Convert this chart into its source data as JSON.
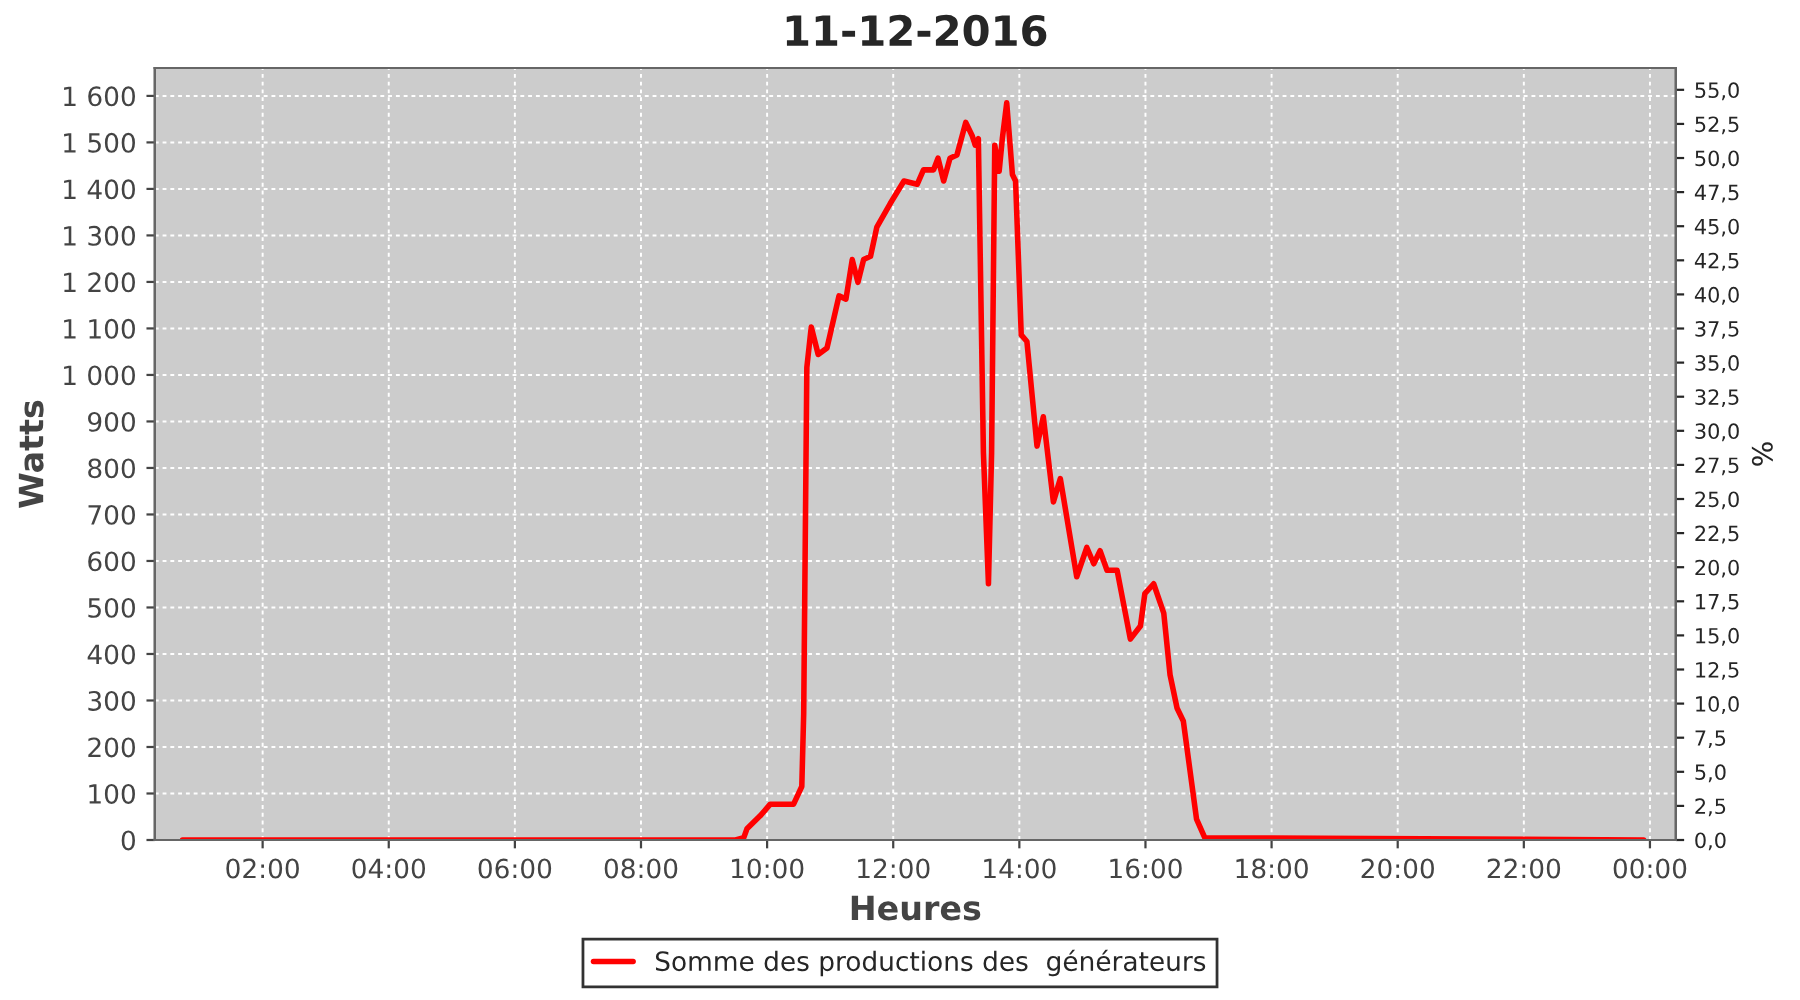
{
  "chart_data": {
    "type": "line",
    "title": "11-12-2016",
    "xlabel": "Heures",
    "ylabel": "Watts",
    "y2label": "%",
    "x": [
      0.73,
      9.5,
      9.63,
      9.68,
      9.89,
      10.05,
      10.42,
      10.55,
      10.58,
      10.63,
      10.7,
      10.81,
      10.95,
      11.14,
      11.25,
      11.35,
      11.44,
      11.53,
      11.64,
      11.74,
      11.95,
      12.17,
      12.38,
      12.48,
      12.64,
      12.71,
      12.8,
      12.9,
      13.01,
      13.15,
      13.25,
      13.3,
      13.35,
      13.43,
      13.51,
      13.56,
      13.61,
      13.68,
      13.73,
      13.8,
      13.89,
      13.94,
      14.03,
      14.12,
      14.28,
      14.38,
      14.54,
      14.65,
      14.91,
      15.07,
      15.18,
      15.28,
      15.39,
      15.55,
      15.76,
      15.92,
      15.99,
      16.13,
      16.29,
      16.39,
      16.5,
      16.6,
      16.81,
      16.94,
      23.9
    ],
    "series": [
      {
        "name": "Somme des productions des  générateurs",
        "color": "#ff0000",
        "values": [
          0,
          0,
          5,
          24,
          52,
          77,
          77,
          115,
          271,
          1016,
          1103,
          1044,
          1058,
          1170,
          1163,
          1248,
          1199,
          1248,
          1255,
          1318,
          1368,
          1417,
          1410,
          1441,
          1441,
          1466,
          1417,
          1466,
          1473,
          1543,
          1515,
          1494,
          1508,
          833,
          551,
          833,
          1494,
          1438,
          1508,
          1585,
          1431,
          1417,
          1086,
          1072,
          847,
          910,
          727,
          777,
          566,
          629,
          594,
          622,
          580,
          580,
          432,
          460,
          530,
          551,
          488,
          355,
          284,
          256,
          45,
          5,
          0
        ]
      }
    ],
    "xlim": [
      0.29,
      24.41
    ],
    "xticks": [
      {
        "value": 2,
        "label": "02:00"
      },
      {
        "value": 4,
        "label": "04:00"
      },
      {
        "value": 6,
        "label": "06:00"
      },
      {
        "value": 8,
        "label": "08:00"
      },
      {
        "value": 10,
        "label": "10:00"
      },
      {
        "value": 12,
        "label": "12:00"
      },
      {
        "value": 14,
        "label": "14:00"
      },
      {
        "value": 16,
        "label": "16:00"
      },
      {
        "value": 18,
        "label": "18:00"
      },
      {
        "value": 20,
        "label": "20:00"
      },
      {
        "value": 22,
        "label": "22:00"
      },
      {
        "value": 24,
        "label": "00:00"
      }
    ],
    "ylim": [
      0,
      1660
    ],
    "yticks": [
      0,
      100,
      200,
      300,
      400,
      500,
      600,
      700,
      800,
      900,
      {
        "value": 1000,
        "label": "1 000"
      },
      {
        "value": 1100,
        "label": "1 100"
      },
      {
        "value": 1200,
        "label": "1 200"
      },
      {
        "value": 1300,
        "label": "1 300"
      },
      {
        "value": 1400,
        "label": "1 400"
      },
      {
        "value": 1500,
        "label": "1 500"
      },
      {
        "value": 1600,
        "label": "1 600"
      }
    ],
    "y2lim": [
      0,
      56.6
    ],
    "y2ticks": [
      {
        "value": 0,
        "label": "0,0"
      },
      {
        "value": 2.5,
        "label": "2,5"
      },
      {
        "value": 5,
        "label": "5,0"
      },
      {
        "value": 7.5,
        "label": "7,5"
      },
      {
        "value": 10,
        "label": "10,0"
      },
      {
        "value": 12.5,
        "label": "12,5"
      },
      {
        "value": 15,
        "label": "15,0"
      },
      {
        "value": 17.5,
        "label": "17,5"
      },
      {
        "value": 20,
        "label": "20,0"
      },
      {
        "value": 22.5,
        "label": "22,5"
      },
      {
        "value": 25,
        "label": "25,0"
      },
      {
        "value": 27.5,
        "label": "27,5"
      },
      {
        "value": 30,
        "label": "30,0"
      },
      {
        "value": 32.5,
        "label": "32,5"
      },
      {
        "value": 35,
        "label": "35,0"
      },
      {
        "value": 37.5,
        "label": "37,5"
      },
      {
        "value": 40,
        "label": "40,0"
      },
      {
        "value": 42.5,
        "label": "42,5"
      },
      {
        "value": 45,
        "label": "45,0"
      },
      {
        "value": 47.5,
        "label": "47,5"
      },
      {
        "value": 50,
        "label": "50,0"
      },
      {
        "value": 52.5,
        "label": "52,5"
      },
      {
        "value": 55,
        "label": "55,0"
      }
    ],
    "grid": true,
    "legend": "bottom",
    "line_style": "solid"
  }
}
